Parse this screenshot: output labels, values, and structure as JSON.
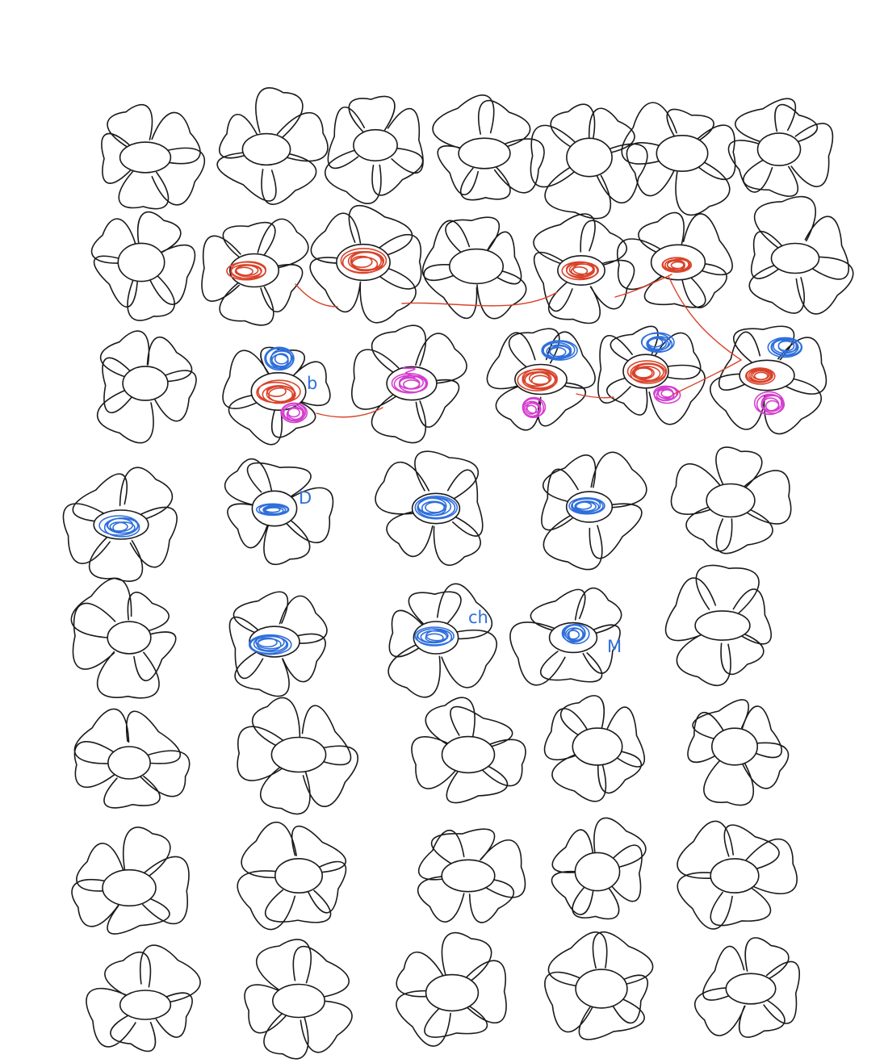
{
  "page": {
    "rows": [
      7,
      7,
      6,
      5,
      5,
      5,
      5,
      5
    ]
  },
  "colors": {
    "ink": "#1a1a1a",
    "red": "#d9432a",
    "blue": "#2f6fdc",
    "magenta": "#d43fcf",
    "background": "#ffffff"
  },
  "annotations": {
    "label_b": "b",
    "label_d": "D",
    "label_ch": "ch",
    "label_m": "M",
    "label_m2": "M"
  }
}
